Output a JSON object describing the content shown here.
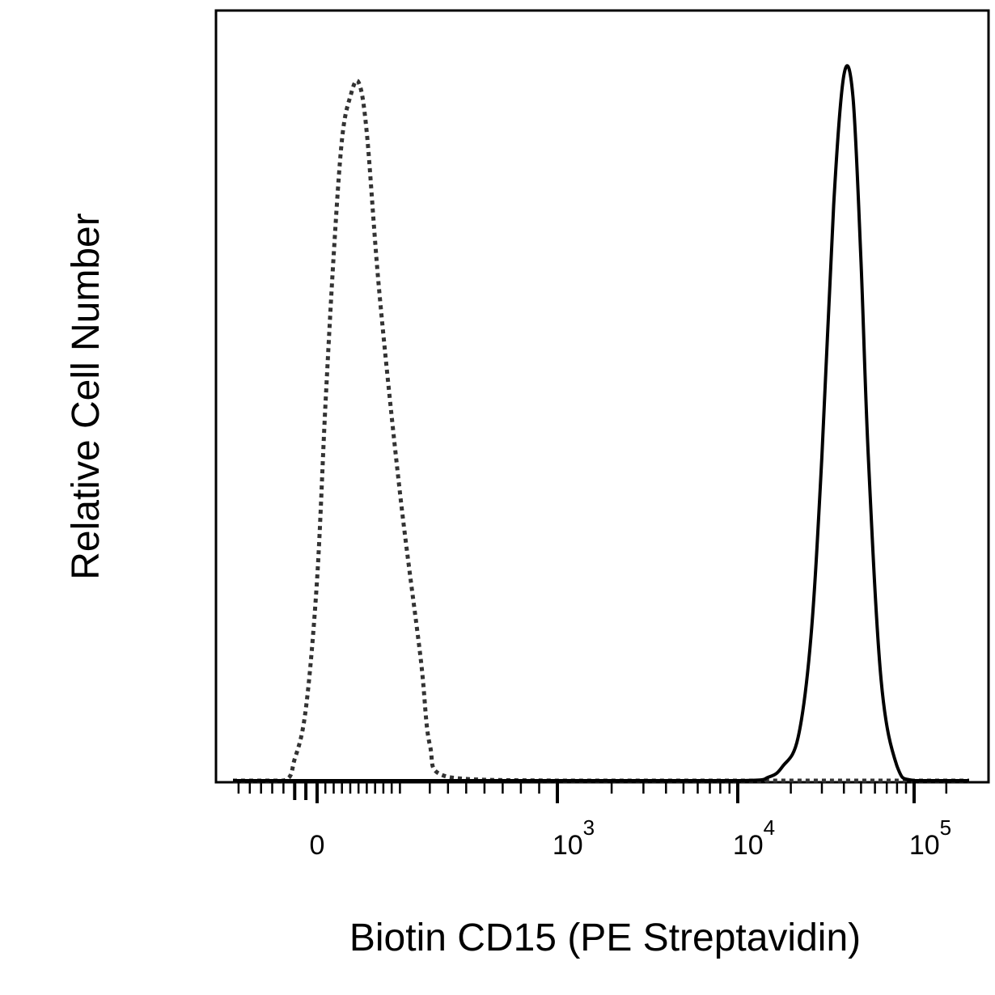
{
  "chart_data": {
    "type": "line",
    "title": "",
    "xlabel": "Biotin CD15 (PE Streptavidin)",
    "ylabel": "Relative Cell Number",
    "x_scale": "biexponential",
    "xlim": [
      -150,
      200000
    ],
    "ylim": [
      0,
      100
    ],
    "grid": false,
    "legend": "none",
    "x_ticks": [
      {
        "value": 0,
        "base": "0",
        "exp": ""
      },
      {
        "value": 1000,
        "base": "10",
        "exp": "3"
      },
      {
        "value": 10000,
        "base": "10",
        "exp": "4"
      },
      {
        "value": 100000,
        "base": "10",
        "exp": "5"
      }
    ],
    "series": [
      {
        "style": "dotted",
        "color": "#333333",
        "x": [
          -150,
          -60,
          -40,
          -20,
          0,
          20,
          40,
          60,
          80,
          100,
          120,
          150,
          200,
          250,
          300,
          400,
          1000,
          10000,
          100000,
          200000
        ],
        "y": [
          0,
          0,
          3,
          10,
          28,
          52,
          73,
          89,
          95,
          97,
          90,
          68,
          40,
          17,
          5,
          0.5,
          0,
          0,
          0,
          0
        ]
      },
      {
        "style": "solid",
        "color": "#000000",
        "x": [
          -150,
          1000,
          10000,
          15000,
          18000,
          22000,
          26000,
          30000,
          35000,
          40000,
          45000,
          50000,
          55000,
          65000,
          80000,
          100000,
          200000
        ],
        "y": [
          0,
          0,
          0,
          0.5,
          2,
          6,
          20,
          45,
          80,
          98,
          95,
          72,
          45,
          14,
          2,
          0,
          0
        ]
      }
    ]
  }
}
